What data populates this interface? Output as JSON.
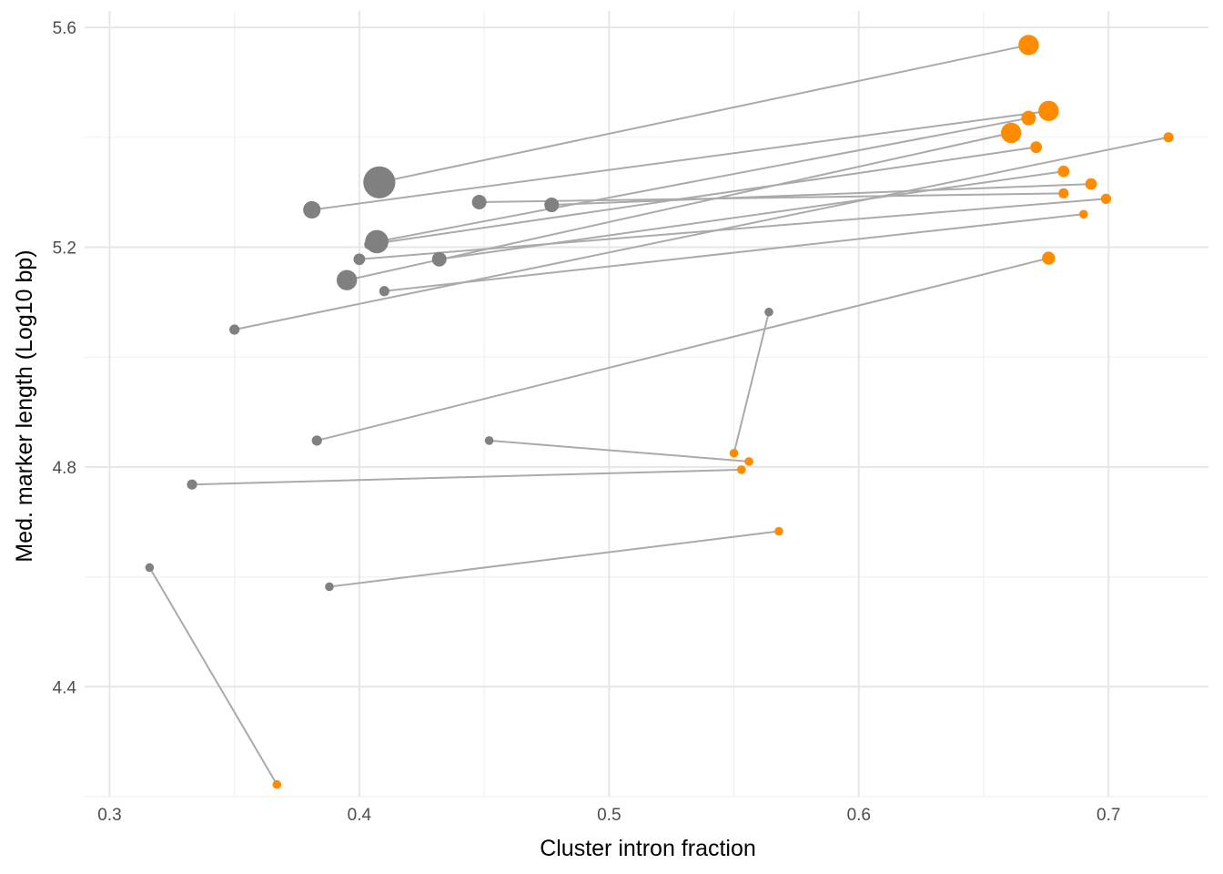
{
  "chart_data": {
    "type": "scatter",
    "xlabel": "Cluster intron fraction",
    "ylabel": "Med. marker length (Log10 bp)",
    "xlim": [
      0.29,
      0.74
    ],
    "ylim": [
      4.2,
      5.63
    ],
    "x_ticks": [
      "0.3",
      "0.4",
      "0.5",
      "0.6",
      "0.7"
    ],
    "y_ticks": [
      "4.4",
      "4.8",
      "5.2",
      "5.6"
    ],
    "grid": true,
    "legend": "none",
    "colors": {
      "start": "#808080",
      "end": "#ff8c00",
      "connector": "#aaaaaa",
      "grid_major": "#e6e6e6",
      "grid_minor": "#f0f0f0"
    },
    "pairs": [
      {
        "x0": 0.408,
        "y0": 5.318,
        "s0": 11,
        "x1": 0.668,
        "y1": 5.568,
        "s1": 7
      },
      {
        "x0": 0.381,
        "y0": 5.268,
        "s0": 6,
        "x1": 0.676,
        "y1": 5.448,
        "s1": 7
      },
      {
        "x0": 0.407,
        "y0": 5.21,
        "s0": 8,
        "x1": 0.668,
        "y1": 5.435,
        "s1": 5
      },
      {
        "x0": 0.395,
        "y0": 5.14,
        "s0": 7,
        "x1": 0.661,
        "y1": 5.408,
        "s1": 7
      },
      {
        "x0": 0.35,
        "y0": 5.05,
        "s0": 3.5,
        "x1": 0.724,
        "y1": 5.4,
        "s1": 3.5
      },
      {
        "x0": 0.404,
        "y0": 5.205,
        "s0": 3.5,
        "x1": 0.671,
        "y1": 5.382,
        "s1": 4
      },
      {
        "x0": 0.432,
        "y0": 5.178,
        "s0": 5,
        "x1": 0.682,
        "y1": 5.338,
        "s1": 4
      },
      {
        "x0": 0.477,
        "y0": 5.277,
        "s0": 5,
        "x1": 0.693,
        "y1": 5.315,
        "s1": 4
      },
      {
        "x0": 0.448,
        "y0": 5.282,
        "s0": 5,
        "x1": 0.682,
        "y1": 5.298,
        "s1": 3.5
      },
      {
        "x0": 0.4,
        "y0": 5.178,
        "s0": 4,
        "x1": 0.699,
        "y1": 5.288,
        "s1": 3.5
      },
      {
        "x0": 0.41,
        "y0": 5.12,
        "s0": 3.5,
        "x1": 0.69,
        "y1": 5.26,
        "s1": 3
      },
      {
        "x0": 0.383,
        "y0": 4.848,
        "s0": 3.5,
        "x1": 0.676,
        "y1": 5.18,
        "s1": 4.5
      },
      {
        "x0": 0.564,
        "y0": 5.082,
        "s0": 3,
        "x1": 0.55,
        "y1": 4.825,
        "s1": 3
      },
      {
        "x0": 0.452,
        "y0": 4.848,
        "s0": 3,
        "x1": 0.556,
        "y1": 4.81,
        "s1": 3
      },
      {
        "x0": 0.333,
        "y0": 4.768,
        "s0": 3.5,
        "x1": 0.553,
        "y1": 4.795,
        "s1": 3
      },
      {
        "x0": 0.388,
        "y0": 4.582,
        "s0": 3,
        "x1": 0.568,
        "y1": 4.683,
        "s1": 3
      },
      {
        "x0": 0.316,
        "y0": 4.617,
        "s0": 3,
        "x1": 0.367,
        "y1": 4.222,
        "s1": 3
      }
    ]
  }
}
